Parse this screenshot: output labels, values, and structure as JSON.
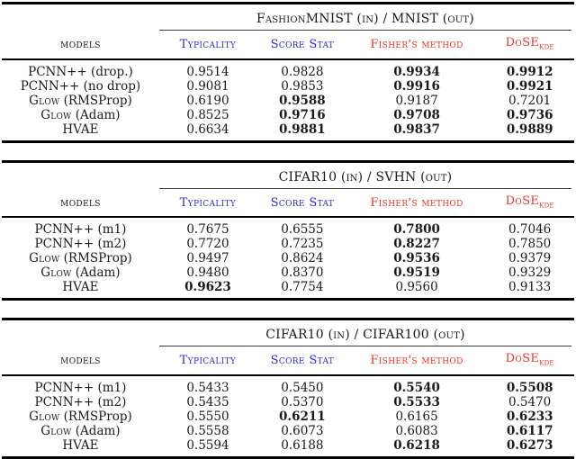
{
  "colors": {
    "header_blue": "#2b2bd5",
    "header_red": "#e93423",
    "rule_black": "#000000"
  },
  "columns": {
    "models": "models",
    "typicality": "Typicality",
    "score_stat": "Score Stat",
    "fisher": "Fisher's method",
    "dose": "DoSE",
    "dose_sub": "kde"
  },
  "tables": [
    {
      "title": "FashionMNIST (in) / MNIST (out)",
      "rows": [
        {
          "model_sc": "",
          "model_rest": "PCNN++ (drop.)",
          "cells": [
            {
              "v": "0.9514",
              "b": false
            },
            {
              "v": "0.9828",
              "b": false
            },
            {
              "v": "0.9934",
              "b": true
            },
            {
              "v": "0.9912",
              "b": true
            }
          ]
        },
        {
          "model_sc": "",
          "model_rest": "PCNN++ (no drop)",
          "cells": [
            {
              "v": "0.9081",
              "b": false
            },
            {
              "v": "0.9853",
              "b": false
            },
            {
              "v": "0.9916",
              "b": true
            },
            {
              "v": "0.9921",
              "b": true
            }
          ]
        },
        {
          "model_sc": "Glow",
          "model_rest": " (RMSProp)",
          "cells": [
            {
              "v": "0.6190",
              "b": false
            },
            {
              "v": "0.9588",
              "b": true
            },
            {
              "v": "0.9187",
              "b": false
            },
            {
              "v": "0.7201",
              "b": false
            }
          ]
        },
        {
          "model_sc": "Glow",
          "model_rest": " (Adam)",
          "cells": [
            {
              "v": "0.8525",
              "b": false
            },
            {
              "v": "0.9716",
              "b": true
            },
            {
              "v": "0.9708",
              "b": true
            },
            {
              "v": "0.9736",
              "b": true
            }
          ]
        },
        {
          "model_sc": "",
          "model_rest": "HVAE",
          "cells": [
            {
              "v": "0.6634",
              "b": false
            },
            {
              "v": "0.9881",
              "b": true
            },
            {
              "v": "0.9837",
              "b": true
            },
            {
              "v": "0.9889",
              "b": true
            }
          ]
        }
      ]
    },
    {
      "title": "CIFAR10 (in) / SVHN (out)",
      "rows": [
        {
          "model_sc": "",
          "model_rest": "PCNN++ (m1)",
          "cells": [
            {
              "v": "0.7675",
              "b": false
            },
            {
              "v": "0.6555",
              "b": false
            },
            {
              "v": "0.7800",
              "b": true
            },
            {
              "v": "0.7046",
              "b": false
            }
          ]
        },
        {
          "model_sc": "",
          "model_rest": "PCNN++ (m2)",
          "cells": [
            {
              "v": "0.7720",
              "b": false
            },
            {
              "v": "0.7235",
              "b": false
            },
            {
              "v": "0.8227",
              "b": true
            },
            {
              "v": "0.7850",
              "b": false
            }
          ]
        },
        {
          "model_sc": "Glow",
          "model_rest": " (RMSProp)",
          "cells": [
            {
              "v": "0.9497",
              "b": false
            },
            {
              "v": "0.8624",
              "b": false
            },
            {
              "v": "0.9536",
              "b": true
            },
            {
              "v": "0.9379",
              "b": false
            }
          ]
        },
        {
          "model_sc": "Glow",
          "model_rest": " (Adam)",
          "cells": [
            {
              "v": "0.9480",
              "b": false
            },
            {
              "v": "0.8370",
              "b": false
            },
            {
              "v": "0.9519",
              "b": true
            },
            {
              "v": "0.9329",
              "b": false
            }
          ]
        },
        {
          "model_sc": "",
          "model_rest": "HVAE",
          "cells": [
            {
              "v": "0.9623",
              "b": true
            },
            {
              "v": "0.7754",
              "b": false
            },
            {
              "v": "0.9560",
              "b": false
            },
            {
              "v": "0.9133",
              "b": false
            }
          ]
        }
      ]
    },
    {
      "title": "CIFAR10 (in) / CIFAR100 (out)",
      "rows": [
        {
          "model_sc": "",
          "model_rest": "PCNN++ (m1)",
          "cells": [
            {
              "v": "0.5433",
              "b": false
            },
            {
              "v": "0.5450",
              "b": false
            },
            {
              "v": "0.5540",
              "b": true
            },
            {
              "v": "0.5508",
              "b": true
            }
          ]
        },
        {
          "model_sc": "",
          "model_rest": "PCNN++ (m2)",
          "cells": [
            {
              "v": "0.5435",
              "b": false
            },
            {
              "v": "0.5370",
              "b": false
            },
            {
              "v": "0.5533",
              "b": true
            },
            {
              "v": "0.5470",
              "b": false
            }
          ]
        },
        {
          "model_sc": "Glow",
          "model_rest": " (RMSProp)",
          "cells": [
            {
              "v": "0.5550",
              "b": false
            },
            {
              "v": "0.6211",
              "b": true
            },
            {
              "v": "0.6165",
              "b": false
            },
            {
              "v": "0.6233",
              "b": true
            }
          ]
        },
        {
          "model_sc": "Glow",
          "model_rest": " (Adam)",
          "cells": [
            {
              "v": "0.5558",
              "b": false
            },
            {
              "v": "0.6073",
              "b": false
            },
            {
              "v": "0.6083",
              "b": false
            },
            {
              "v": "0.6117",
              "b": true
            }
          ]
        },
        {
          "model_sc": "",
          "model_rest": "HVAE",
          "cells": [
            {
              "v": "0.5594",
              "b": false
            },
            {
              "v": "0.6188",
              "b": false
            },
            {
              "v": "0.6218",
              "b": true
            },
            {
              "v": "0.6273",
              "b": true
            }
          ]
        }
      ]
    }
  ]
}
